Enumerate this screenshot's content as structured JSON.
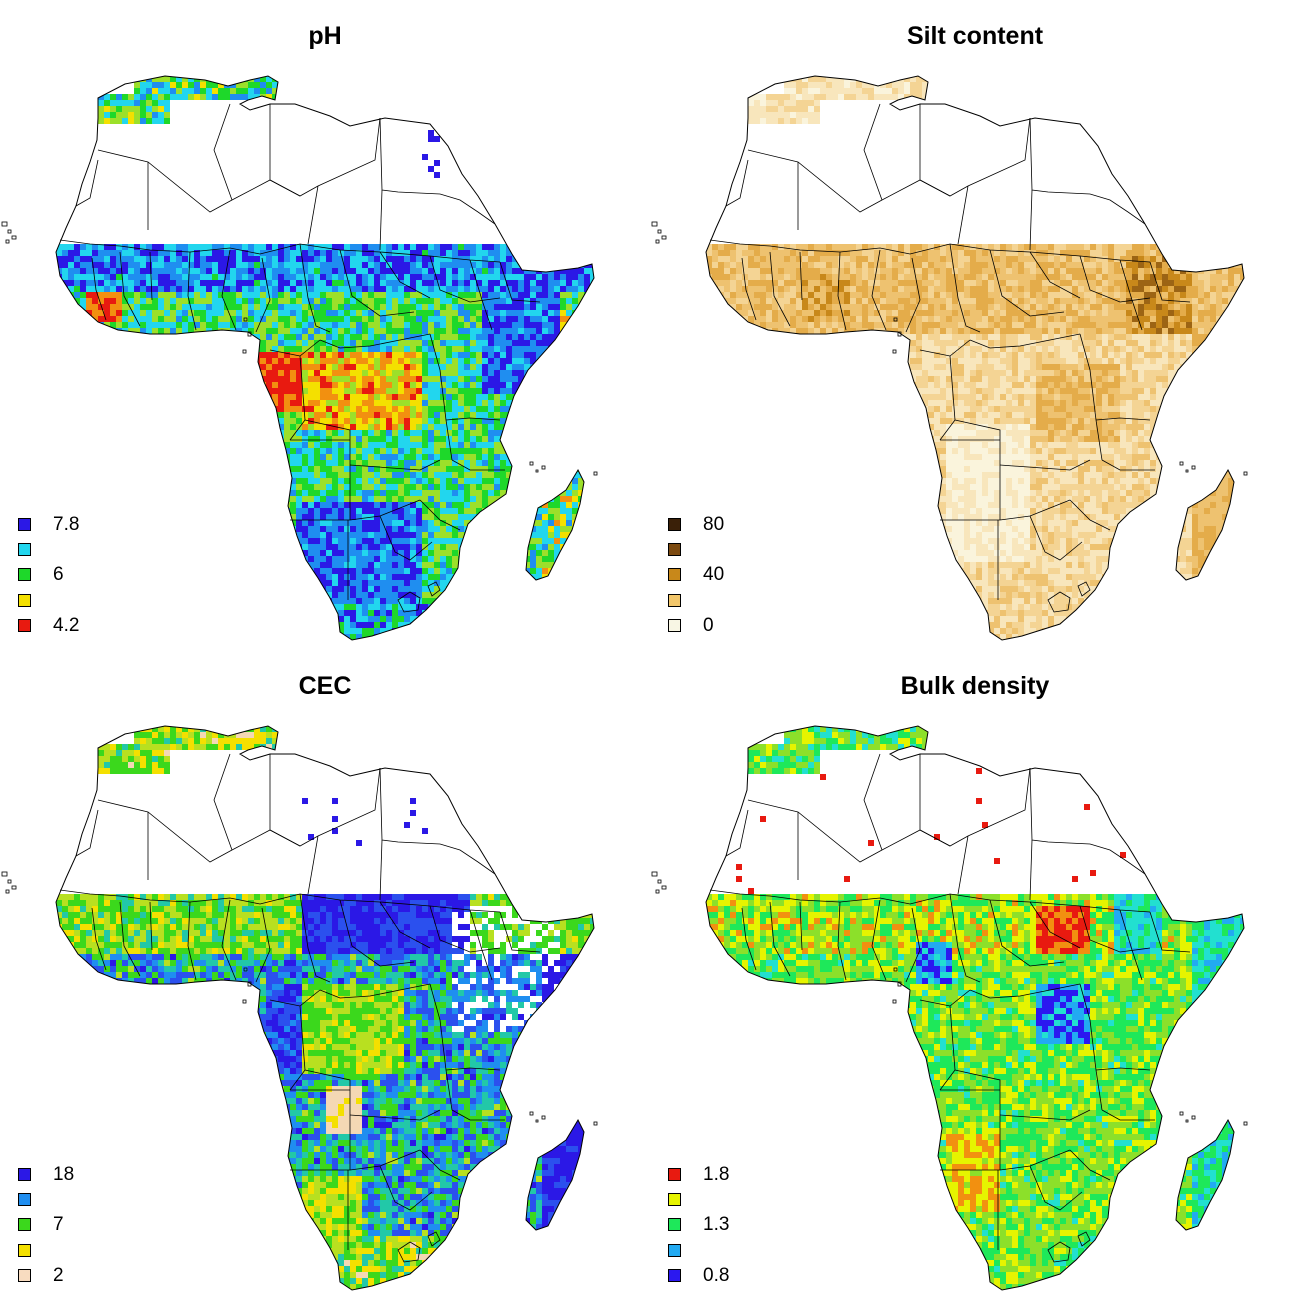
{
  "figure": {
    "panels": [
      {
        "title": "pH",
        "legend": [
          {
            "color": "#2b18e6",
            "label": "7.8"
          },
          {
            "color": "#22d6ee",
            "label": ""
          },
          {
            "color": "#1ed82a",
            "label": "6"
          },
          {
            "color": "#f4e000",
            "label": ""
          },
          {
            "color": "#e81a10",
            "label": "4.2"
          }
        ],
        "palette": [
          "#e81a10",
          "#f29010",
          "#f4e000",
          "#9ce02a",
          "#1ed82a",
          "#22d6ee",
          "#1f8ef0",
          "#2b18e6"
        ]
      },
      {
        "title": "Silt content",
        "legend": [
          {
            "color": "#3a2008",
            "label": "80"
          },
          {
            "color": "#7c4a10",
            "label": ""
          },
          {
            "color": "#c8881a",
            "label": "40"
          },
          {
            "color": "#f2c66a",
            "label": ""
          },
          {
            "color": "#f8f6e4",
            "label": "0"
          }
        ],
        "palette": [
          "#faf4dc",
          "#f8e6bc",
          "#f4d494",
          "#eec270",
          "#e4ac4a",
          "#c8881a",
          "#9c6414"
        ]
      },
      {
        "title": "CEC",
        "legend": [
          {
            "color": "#2b18e6",
            "label": "18"
          },
          {
            "color": "#1f8ef0",
            "label": ""
          },
          {
            "color": "#3bd81c",
            "label": "7"
          },
          {
            "color": "#f4e000",
            "label": ""
          },
          {
            "color": "#f8dcc0",
            "label": "2"
          }
        ],
        "palette": [
          "#f4d8b4",
          "#f4e000",
          "#b8e020",
          "#3bd81c",
          "#22c8a8",
          "#1f8ef0",
          "#2b50ee",
          "#2b18e6"
        ]
      },
      {
        "title": "Bulk density",
        "legend": [
          {
            "color": "#e81a10",
            "label": "1.8"
          },
          {
            "color": "#e6f400",
            "label": ""
          },
          {
            "color": "#1ee85a",
            "label": "1.3"
          },
          {
            "color": "#22aaf2",
            "label": ""
          },
          {
            "color": "#2b18f0",
            "label": "0.8"
          }
        ],
        "palette": [
          "#2b18f0",
          "#22aaf2",
          "#22e0d0",
          "#1ee85a",
          "#8ce02a",
          "#e6f400",
          "#f29010",
          "#e81a10"
        ]
      }
    ]
  }
}
